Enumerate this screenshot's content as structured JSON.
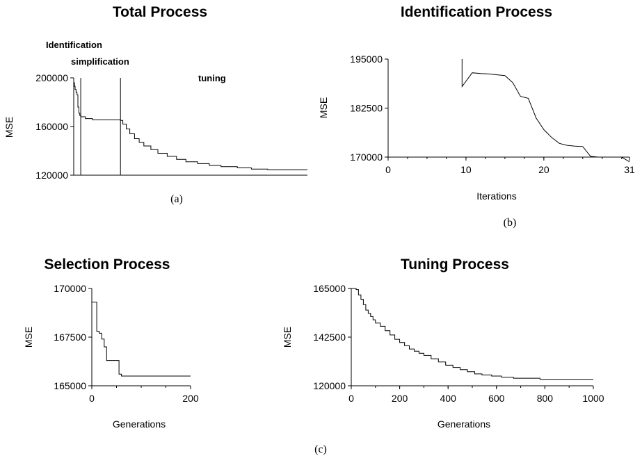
{
  "chart_data": [
    {
      "id": "total",
      "type": "line",
      "panel_label": "(a)",
      "title": "Total Process",
      "ylabel": "MSE",
      "xlabel": "",
      "ylim": [
        120000,
        200000
      ],
      "y_ticks": [
        {
          "value": 120000,
          "label": "120000"
        },
        {
          "value": 160000,
          "label": "160000"
        },
        {
          "value": 200000,
          "label": "200000"
        }
      ],
      "xlim": [
        0,
        1000
      ],
      "x_ticks": [],
      "phase_labels": [
        "Identification",
        "simplification",
        "tuning"
      ],
      "phase_boundaries": [
        30,
        200
      ],
      "series": [
        {
          "step": true,
          "x": [
            0,
            3,
            6,
            10,
            14,
            18,
            22,
            26,
            30,
            50,
            80,
            110,
            140,
            170,
            200,
            210,
            225,
            240,
            260,
            280,
            300,
            330,
            360,
            400,
            440,
            480,
            530,
            580,
            630,
            700,
            760,
            830,
            900,
            1000
          ],
          "y": [
            196000,
            193000,
            190500,
            188000,
            186000,
            176000,
            171000,
            169000,
            168000,
            166500,
            165500,
            165500,
            165500,
            165500,
            165000,
            162000,
            158000,
            154000,
            150000,
            147000,
            144000,
            141000,
            138000,
            135500,
            133000,
            131000,
            129500,
            128000,
            127000,
            126000,
            125000,
            124500,
            124500,
            124500
          ]
        }
      ]
    },
    {
      "id": "ident",
      "type": "line",
      "panel_label": "(b)",
      "title": "Identification Process",
      "ylabel": "MSE",
      "xlabel": "Iterations",
      "ylim": [
        170000,
        195000
      ],
      "y_ticks": [
        {
          "value": 170000,
          "label": "170000"
        },
        {
          "value": 182500,
          "label": "182500"
        },
        {
          "value": 195000,
          "label": "195000"
        }
      ],
      "xlim": [
        0,
        31
      ],
      "x_ticks": [
        {
          "value": 0,
          "label": "0"
        },
        {
          "value": 10,
          "label": "10"
        },
        {
          "value": 20,
          "label": "20"
        },
        {
          "value": 31,
          "label": "31"
        }
      ],
      "series": [
        {
          "step": false,
          "x": [
            9.5,
            9.5,
            10.8,
            12,
            13,
            14,
            15,
            16,
            17,
            18,
            19,
            20,
            21,
            22,
            23,
            24,
            25,
            26,
            27,
            28,
            29,
            30,
            31
          ],
          "y": [
            195000,
            188000,
            191500,
            191300,
            191200,
            191000,
            190800,
            189000,
            185500,
            185000,
            180000,
            177000,
            175000,
            173500,
            173000,
            172800,
            172700,
            170200,
            170000,
            170000,
            170000,
            170000,
            168800
          ]
        }
      ]
    },
    {
      "id": "select",
      "type": "line",
      "panel_label": "",
      "title": "Selection Process",
      "ylabel": "MSE",
      "xlabel": "Generations",
      "ylim": [
        165000,
        170000
      ],
      "y_ticks": [
        {
          "value": 165000,
          "label": "165000"
        },
        {
          "value": 167500,
          "label": "167500"
        },
        {
          "value": 170000,
          "label": "170000"
        }
      ],
      "xlim": [
        0,
        200
      ],
      "x_ticks": [
        {
          "value": 0,
          "label": "0"
        },
        {
          "value": 200,
          "label": "200"
        }
      ],
      "series": [
        {
          "step": true,
          "x": [
            0,
            10,
            15,
            20,
            25,
            30,
            55,
            60,
            200
          ],
          "y": [
            169300,
            167800,
            167700,
            167400,
            167000,
            166300,
            165600,
            165500,
            165500
          ]
        }
      ]
    },
    {
      "id": "tune",
      "type": "line",
      "panel_label": "(c)",
      "title": "Tuning Process",
      "ylabel": "MSE",
      "xlabel": "Generations",
      "ylim": [
        120000,
        165000
      ],
      "y_ticks": [
        {
          "value": 120000,
          "label": "120000"
        },
        {
          "value": 142500,
          "label": "142500"
        },
        {
          "value": 165000,
          "label": "165000"
        }
      ],
      "xlim": [
        0,
        1000
      ],
      "x_ticks": [
        {
          "value": 0,
          "label": "0"
        },
        {
          "value": 200,
          "label": "200"
        },
        {
          "value": 400,
          "label": "400"
        },
        {
          "value": 600,
          "label": "600"
        },
        {
          "value": 800,
          "label": "800"
        },
        {
          "value": 1000,
          "label": "1000"
        }
      ],
      "series": [
        {
          "step": true,
          "x": [
            0,
            20,
            30,
            40,
            50,
            60,
            70,
            80,
            90,
            100,
            120,
            140,
            160,
            180,
            200,
            220,
            240,
            260,
            280,
            300,
            330,
            360,
            390,
            420,
            450,
            480,
            510,
            540,
            580,
            620,
            670,
            720,
            780,
            850,
            1000
          ],
          "y": [
            165000,
            164500,
            162000,
            160000,
            157500,
            155000,
            153500,
            152000,
            150500,
            149000,
            147500,
            145500,
            143500,
            141500,
            140000,
            138500,
            137000,
            136000,
            135000,
            134000,
            132500,
            131000,
            129500,
            128500,
            127500,
            126500,
            125500,
            125000,
            124500,
            124000,
            123500,
            123500,
            123000,
            123000,
            123000
          ]
        }
      ]
    }
  ]
}
